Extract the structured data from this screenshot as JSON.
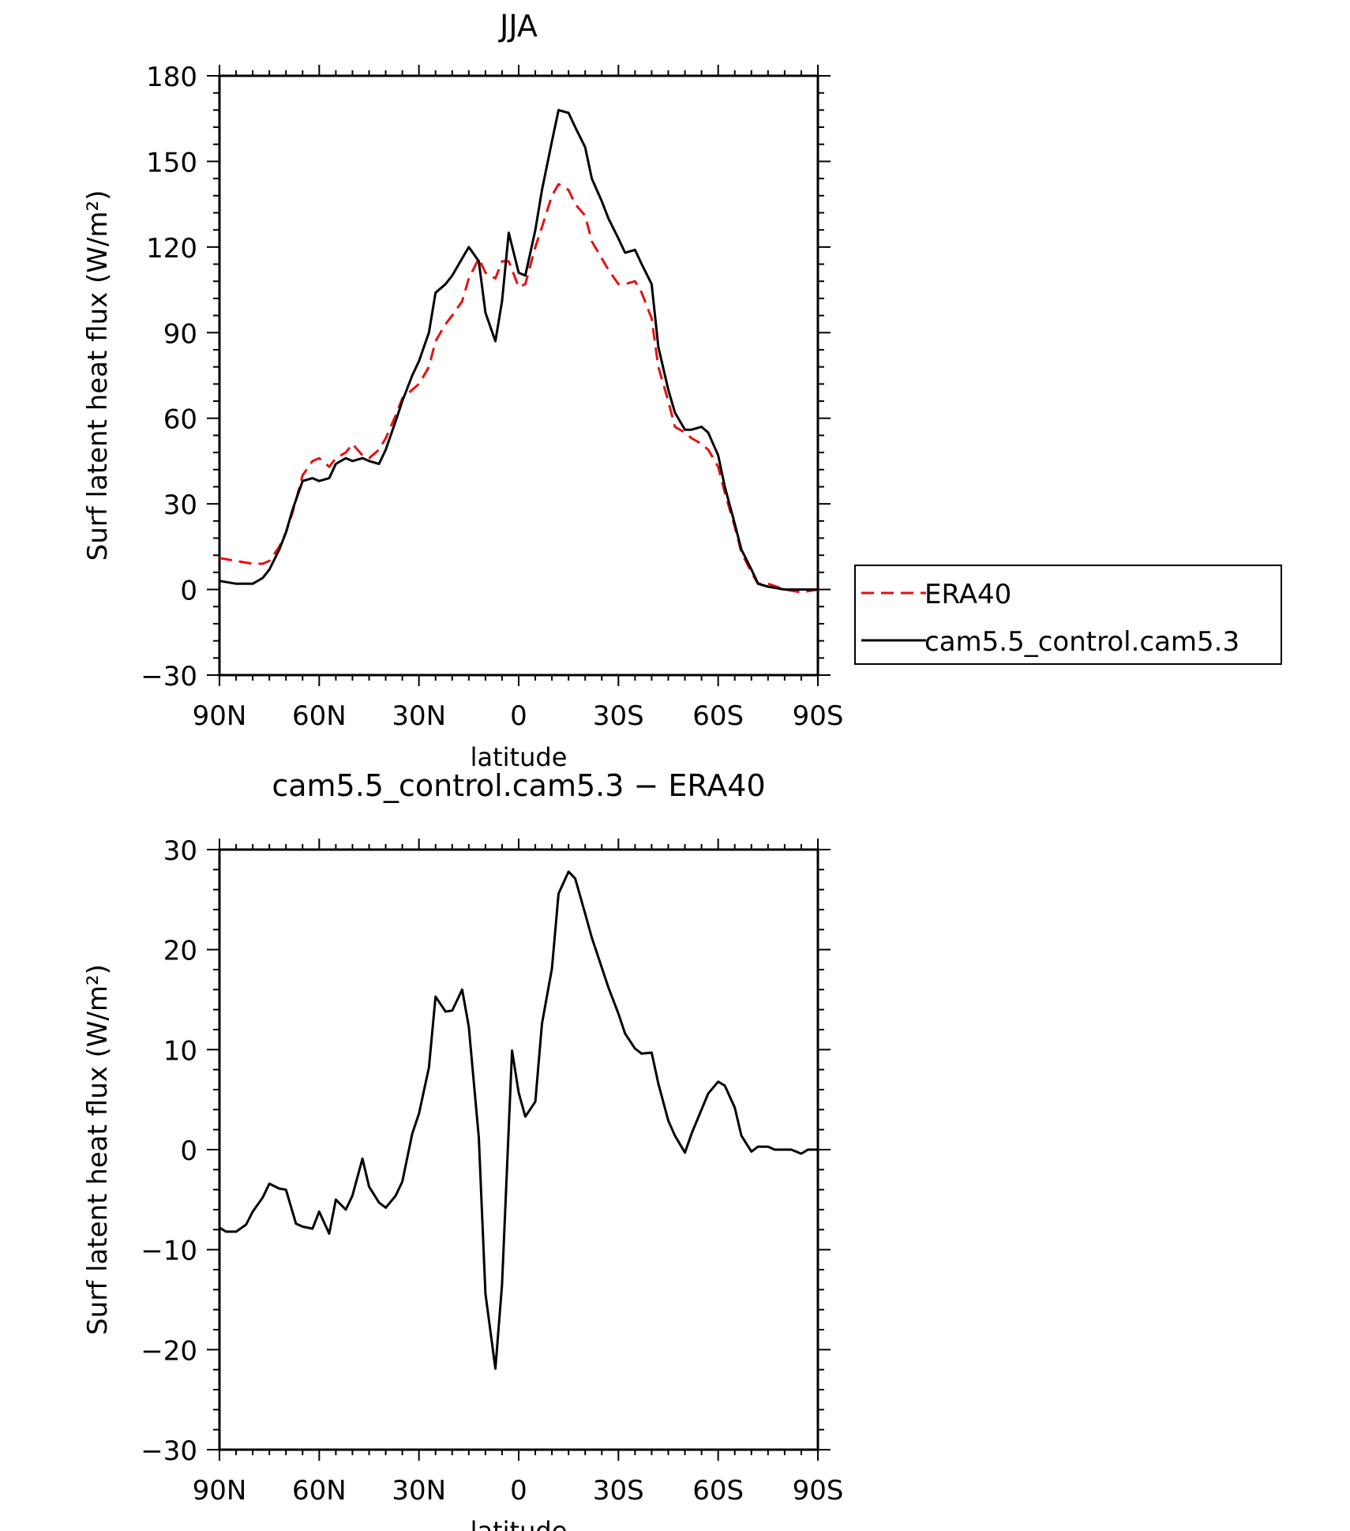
{
  "chart_data": [
    {
      "type": "line",
      "title": "JJA",
      "xlabel": "latitude",
      "ylabel": "Surf latent heat flux (W/m²)",
      "xlim": [
        90,
        -90
      ],
      "ylim": [
        -30,
        180
      ],
      "x_ticks": [
        {
          "value": 90,
          "label": "90N"
        },
        {
          "value": 60,
          "label": "60N"
        },
        {
          "value": 30,
          "label": "30N"
        },
        {
          "value": 0,
          "label": "0"
        },
        {
          "value": -30,
          "label": "30S"
        },
        {
          "value": -60,
          "label": "60S"
        },
        {
          "value": -90,
          "label": "90S"
        }
      ],
      "y_ticks": [
        -30,
        0,
        30,
        60,
        90,
        120,
        150,
        180
      ],
      "legend": {
        "placement": "right"
      },
      "series": [
        {
          "name": "ERA40",
          "color": "#e81010",
          "dash": "dashed",
          "x": [
            90,
            85,
            80,
            77,
            75,
            72,
            70,
            68,
            65,
            62,
            60,
            57,
            55,
            52,
            50,
            47,
            45,
            42,
            40,
            37,
            35,
            32,
            30,
            27,
            25,
            22,
            20,
            17,
            15,
            12,
            10,
            7,
            5,
            3,
            0,
            -2,
            -5,
            -7,
            -10,
            -12,
            -15,
            -17,
            -20,
            -22,
            -25,
            -27,
            -30,
            -32,
            -35,
            -37,
            -40,
            -42,
            -45,
            -47,
            -50,
            -52,
            -55,
            -57,
            -60,
            -62,
            -65,
            -67,
            -70,
            -72,
            -75,
            -80,
            -85,
            -90
          ],
          "y": [
            11,
            10,
            9,
            9,
            10,
            15,
            20,
            27,
            40,
            45,
            46,
            43,
            46,
            48,
            51,
            47,
            46,
            49,
            53,
            61,
            67,
            70,
            72,
            78,
            87,
            93,
            96,
            101,
            109,
            116,
            111,
            109,
            115,
            115,
            106,
            107,
            120,
            127,
            138,
            142,
            140,
            135,
            131,
            122,
            116,
            112,
            107,
            107,
            108,
            104,
            95,
            78,
            66,
            57,
            55,
            53,
            51,
            49,
            43,
            34,
            22,
            13,
            6,
            2,
            2,
            0,
            -1,
            0
          ]
        },
        {
          "name": "cam5.5_control.cam5.3",
          "color": "#000000",
          "dash": "solid",
          "x": [
            90,
            85,
            80,
            77,
            75,
            72,
            70,
            68,
            65,
            62,
            60,
            57,
            55,
            52,
            50,
            47,
            45,
            42,
            40,
            37,
            35,
            32,
            30,
            27,
            25,
            22,
            20,
            17,
            15,
            12,
            10,
            7,
            5,
            3,
            0,
            -2,
            -5,
            -7,
            -10,
            -12,
            -15,
            -17,
            -20,
            -22,
            -25,
            -27,
            -30,
            -32,
            -35,
            -37,
            -40,
            -42,
            -45,
            -47,
            -50,
            -52,
            -55,
            -57,
            -60,
            -62,
            -65,
            -67,
            -70,
            -72,
            -75,
            -80,
            -85,
            -90
          ],
          "y": [
            3,
            2,
            2,
            4,
            7,
            14,
            20,
            28,
            38,
            39,
            38,
            39,
            44,
            46,
            45,
            46,
            45,
            44,
            49,
            59,
            66,
            75,
            80,
            90,
            104,
            107,
            110,
            116,
            120,
            115,
            97,
            87,
            101,
            125,
            111,
            110,
            126,
            140,
            157,
            168,
            167,
            162,
            155,
            144,
            136,
            130,
            123,
            118,
            119,
            114,
            107,
            85,
            70,
            62,
            56,
            56,
            57,
            55,
            47,
            36,
            23,
            14,
            7,
            2,
            1,
            0,
            0,
            0
          ]
        }
      ]
    },
    {
      "type": "line",
      "title": "cam5.5_control.cam5.3 − ERA40",
      "xlabel": "latitude",
      "ylabel": "Surf latent heat flux (W/m²)",
      "xlim": [
        90,
        -90
      ],
      "ylim": [
        -30,
        30
      ],
      "x_ticks": [
        {
          "value": 90,
          "label": "90N"
        },
        {
          "value": 60,
          "label": "60N"
        },
        {
          "value": 30,
          "label": "30N"
        },
        {
          "value": 0,
          "label": "0"
        },
        {
          "value": -30,
          "label": "30S"
        },
        {
          "value": -60,
          "label": "60S"
        },
        {
          "value": -90,
          "label": "90S"
        }
      ],
      "y_ticks": [
        -30,
        -20,
        -10,
        0,
        10,
        20,
        30
      ],
      "series": [
        {
          "name": "cam5.5_control.cam5.3 − ERA40",
          "color": "#000000",
          "dash": "solid",
          "x": [
            90,
            88,
            85,
            82,
            80,
            77,
            75,
            72,
            70,
            67,
            65,
            62,
            60,
            57,
            55,
            52,
            50,
            47,
            45,
            42,
            40,
            37,
            35,
            32,
            30,
            27,
            25,
            22,
            20,
            17,
            15,
            12,
            10,
            7,
            5,
            2,
            0,
            -2,
            -5,
            -7,
            -10,
            -12,
            -15,
            -17,
            -20,
            -22,
            -25,
            -27,
            -30,
            -32,
            -35,
            -37,
            -40,
            -42,
            -45,
            -47,
            -50,
            -52,
            -55,
            -57,
            -60,
            -62,
            -65,
            -67,
            -70,
            -72,
            -75,
            -77,
            -80,
            -82,
            -85,
            -87,
            -90
          ],
          "y": [
            -7.8,
            -8.2,
            -8.2,
            -7.5,
            -6.2,
            -4.8,
            -3.4,
            -3.9,
            -4.0,
            -7.4,
            -7.7,
            -7.9,
            -6.2,
            -8.4,
            -5.0,
            -6.0,
            -4.6,
            -0.9,
            -3.7,
            -5.3,
            -5.8,
            -4.6,
            -3.2,
            1.6,
            3.6,
            8.2,
            15.3,
            13.8,
            13.9,
            16.0,
            12.3,
            1.2,
            -14.4,
            -21.9,
            -13.5,
            9.9,
            5.7,
            3.3,
            4.8,
            12.6,
            18.1,
            25.6,
            27.8,
            27.1,
            23.6,
            21.2,
            18.2,
            16.2,
            13.6,
            11.6,
            10.1,
            9.6,
            9.7,
            6.6,
            2.9,
            1.4,
            -0.3,
            1.6,
            4.0,
            5.6,
            6.8,
            6.4,
            4.2,
            1.4,
            -0.2,
            0.3,
            0.3,
            0.0,
            0.0,
            0.0,
            -0.4,
            0.0,
            0.0
          ]
        }
      ]
    }
  ]
}
